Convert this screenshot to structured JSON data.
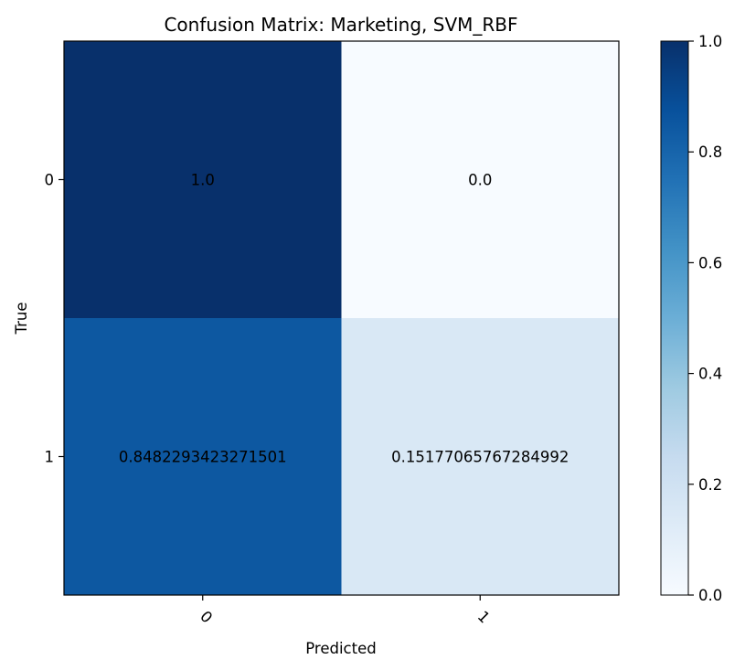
{
  "chart_data": {
    "type": "heatmap",
    "title": "Confusion Matrix: Marketing, SVM_RBF",
    "xlabel": "Predicted",
    "ylabel": "True",
    "x_categories": [
      "0",
      "1"
    ],
    "y_categories": [
      "0",
      "1"
    ],
    "values": [
      [
        1.0,
        0.0
      ],
      [
        0.8482293423271501,
        0.15177065767284992
      ]
    ],
    "cell_labels": [
      [
        "1.0",
        "0.0"
      ],
      [
        "0.8482293423271501",
        "0.15177065767284992"
      ]
    ],
    "colormap": "Blues",
    "colorbar": {
      "range": [
        0.0,
        1.0
      ],
      "ticks": [
        "0.0",
        "0.2",
        "0.4",
        "0.6",
        "0.8",
        "1.0"
      ]
    },
    "x_tick_rotation_deg": 45,
    "grid": false
  }
}
